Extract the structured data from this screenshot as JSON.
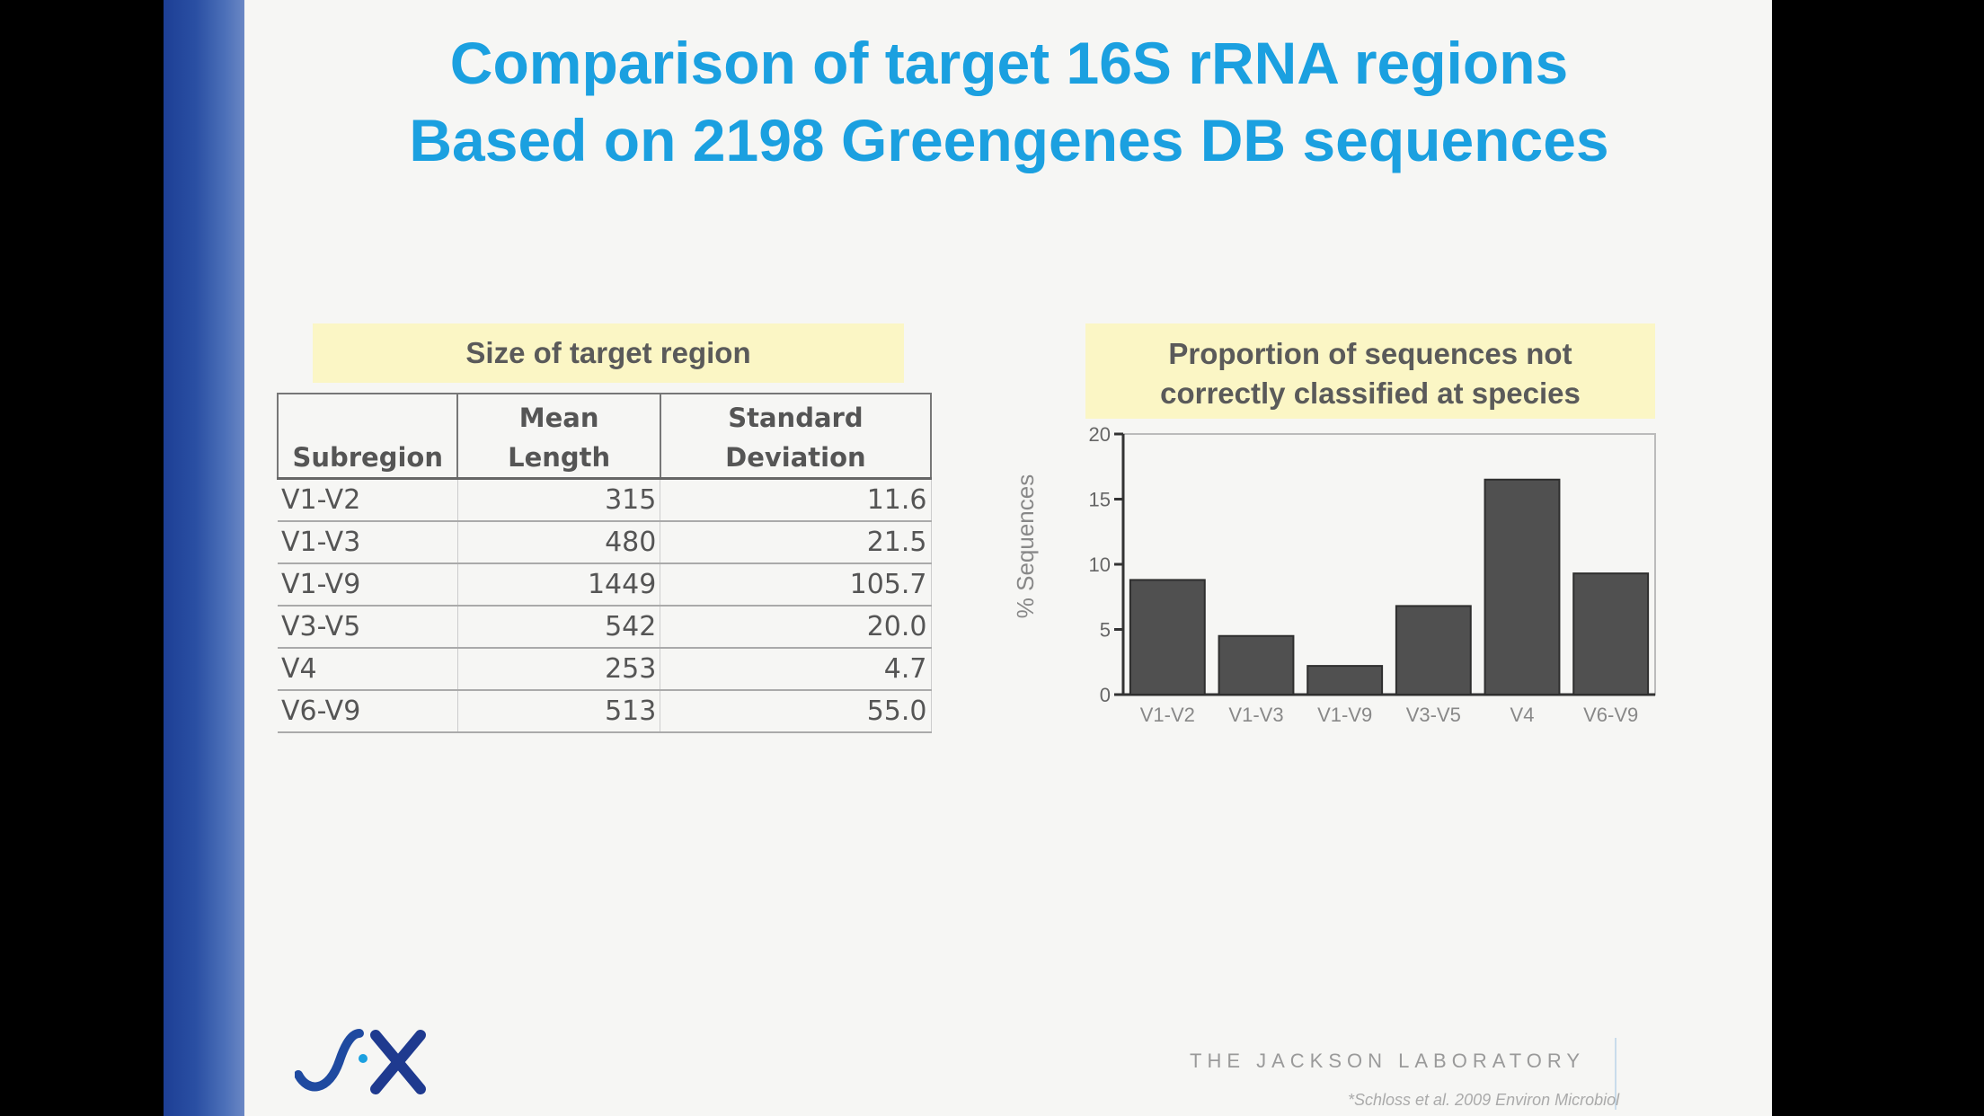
{
  "slide": {
    "title_line1": "Comparison of target 16S rRNA regions",
    "title_line2": "Based on 2198 Greengenes DB sequences",
    "table_heading": "Size of target region",
    "chart_heading_line1": "Proportion of sequences not",
    "chart_heading_line2": "correctly classified at species",
    "footer_org": "THE JACKSON LABORATORY",
    "footer_citation": "*Schloss et al. 2009 Environ Microbiol",
    "accent_color": "#1ba0e0",
    "band_color": "#2a4fa3",
    "highlight_color": "#fbf6c5"
  },
  "table": {
    "headers": {
      "col1": "Subregion",
      "col2_line1": "Mean",
      "col2_line2": "Length",
      "col3_line1": "Standard",
      "col3_line2": "Deviation"
    },
    "rows": [
      {
        "subregion": "V1-V2",
        "mean": "315",
        "sd": "11.6"
      },
      {
        "subregion": "V1-V3",
        "mean": "480",
        "sd": "21.5"
      },
      {
        "subregion": "V1-V9",
        "mean": "1449",
        "sd": "105.7"
      },
      {
        "subregion": "V3-V5",
        "mean": "542",
        "sd": "20.0"
      },
      {
        "subregion": "V4",
        "mean": "253",
        "sd": "4.7"
      },
      {
        "subregion": "V6-V9",
        "mean": "513",
        "sd": "55.0"
      }
    ]
  },
  "chart_data": {
    "type": "bar",
    "categories": [
      "V1-V2",
      "V1-V3",
      "V1-V9",
      "V3-V5",
      "V4",
      "V6-V9"
    ],
    "values": [
      8.8,
      4.5,
      2.2,
      6.8,
      16.5,
      9.3
    ],
    "ylabel": "% Sequences",
    "ylim": [
      0,
      20
    ],
    "yticks": [
      "0",
      "5",
      "10",
      "15",
      "20"
    ],
    "bar_color": "#505050",
    "grid": false,
    "legend": false
  }
}
